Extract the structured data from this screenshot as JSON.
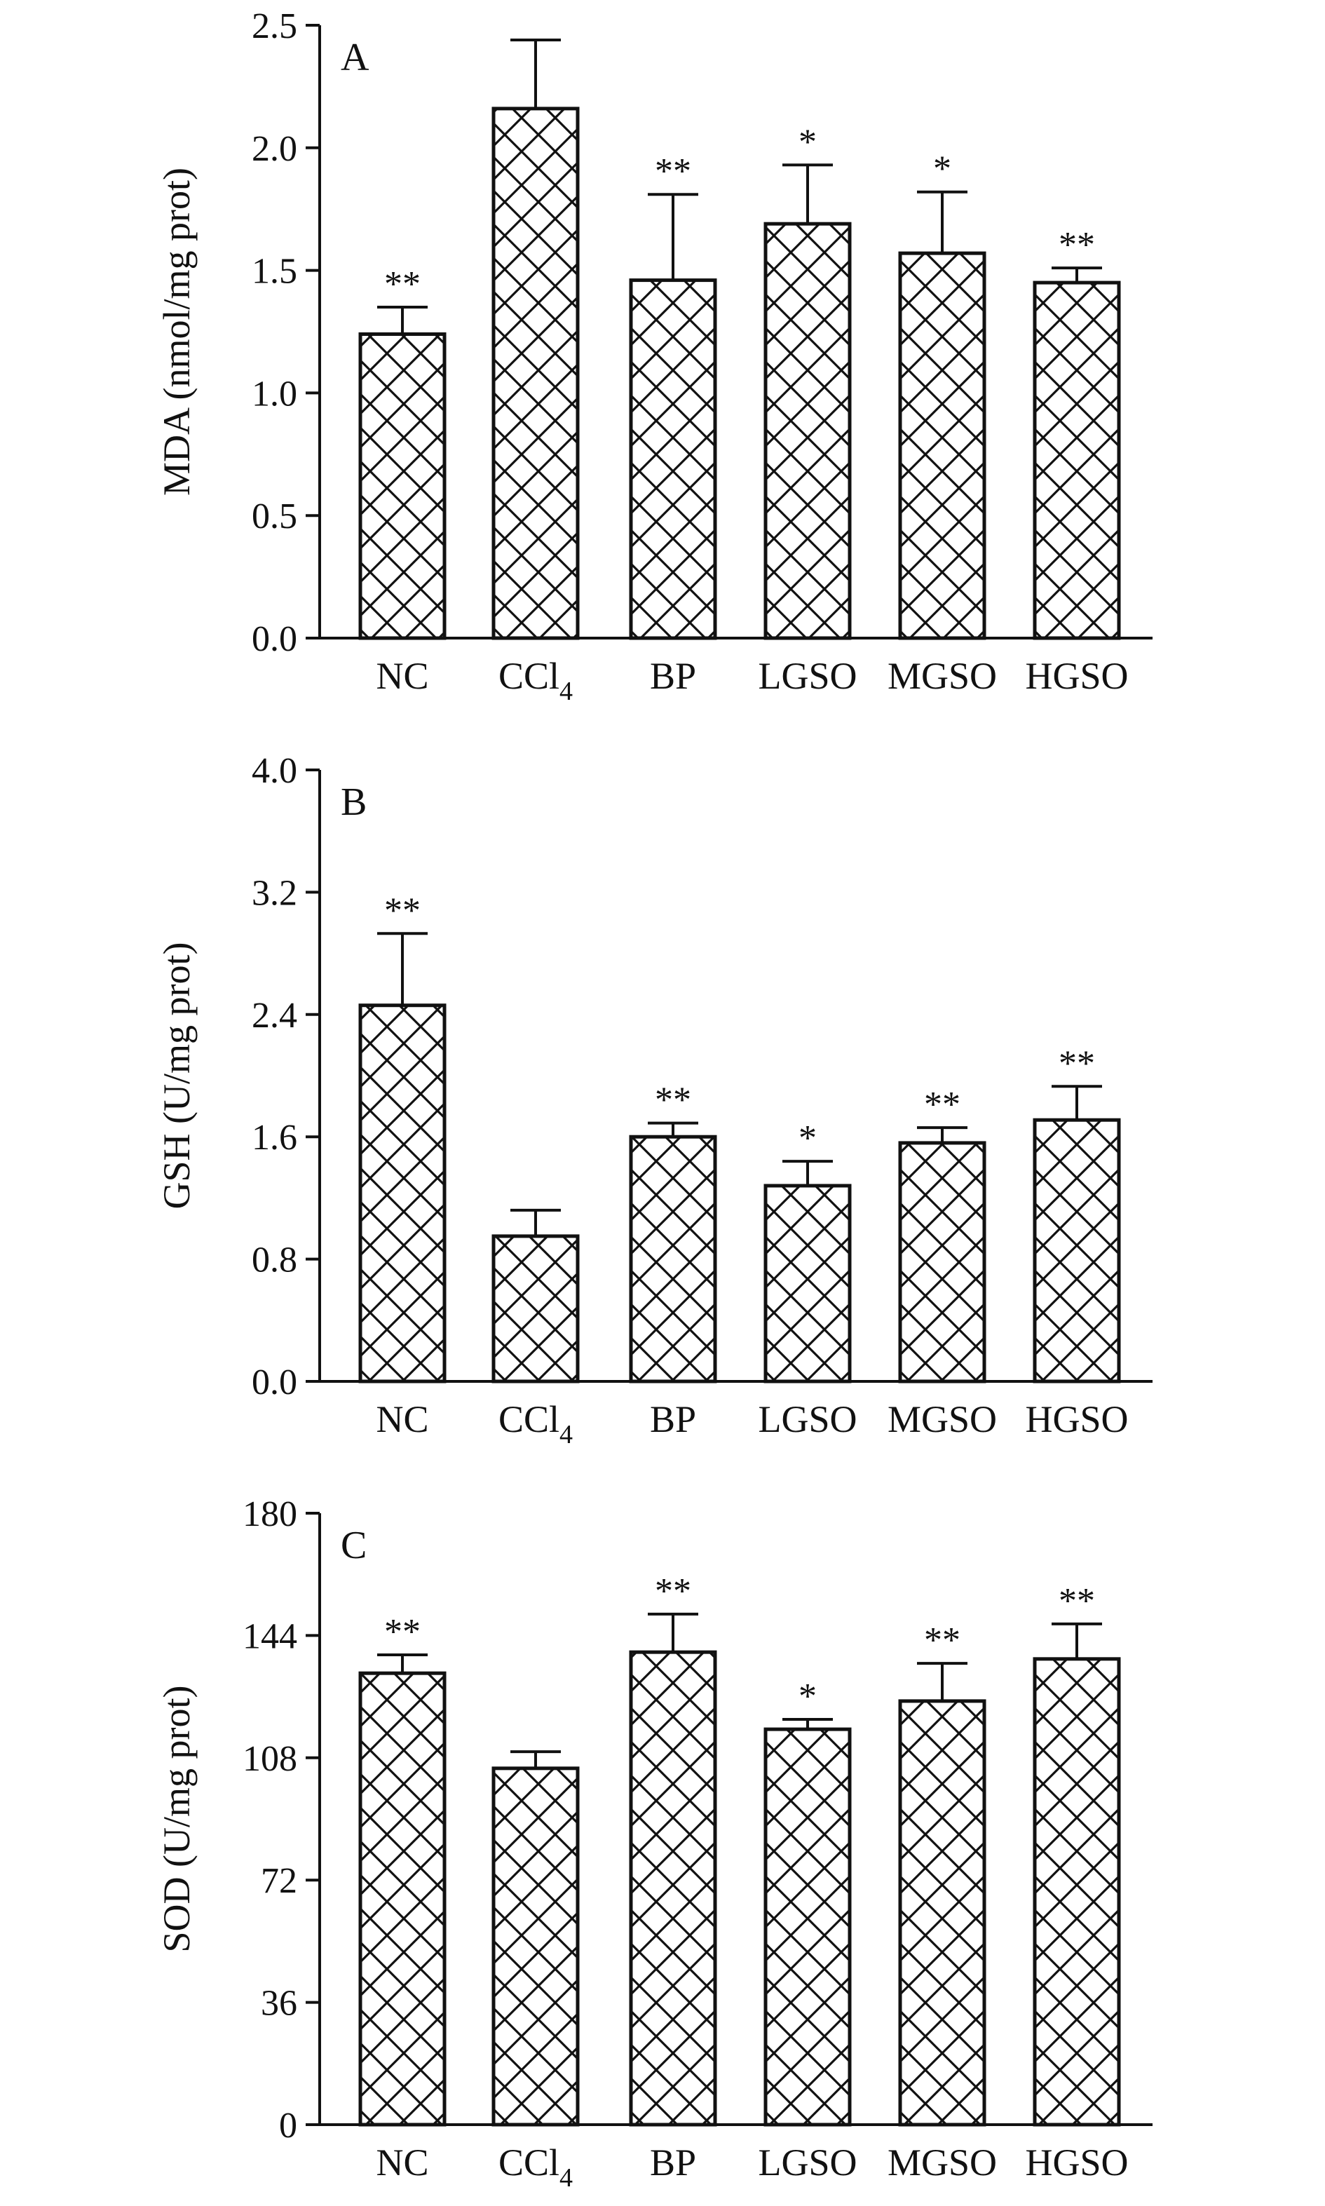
{
  "chart_data": [
    {
      "type": "bar",
      "panel_label": "A",
      "ylabel": "MDA (nmol/mg prot)",
      "ylim": [
        0,
        2.5
      ],
      "yticks": [
        "0.0",
        "0.5",
        "1.0",
        "1.5",
        "2.0",
        "2.5"
      ],
      "categories": [
        "NC",
        "CCl4",
        "BP",
        "LGSO",
        "MGSO",
        "HGSO"
      ],
      "values": [
        1.24,
        2.16,
        1.46,
        1.69,
        1.57,
        1.45
      ],
      "error_upper": [
        1.35,
        2.44,
        1.81,
        1.93,
        1.82,
        1.51
      ],
      "significance": [
        "**",
        "",
        "**",
        "*",
        "*",
        "**"
      ]
    },
    {
      "type": "bar",
      "panel_label": "B",
      "ylabel": "GSH (U/mg prot)",
      "ylim": [
        0,
        4.0
      ],
      "yticks": [
        "0.0",
        "0.8",
        "1.6",
        "2.4",
        "3.2",
        "4.0"
      ],
      "categories": [
        "NC",
        "CCl4",
        "BP",
        "LGSO",
        "MGSO",
        "HGSO"
      ],
      "values": [
        2.46,
        0.95,
        1.6,
        1.28,
        1.56,
        1.71
      ],
      "error_upper": [
        2.93,
        1.12,
        1.69,
        1.44,
        1.66,
        1.93
      ],
      "significance": [
        "**",
        "",
        "**",
        "*",
        "**",
        "**"
      ]
    },
    {
      "type": "bar",
      "panel_label": "C",
      "ylabel": "SOD (U/mg prot)",
      "ylim": [
        0,
        180
      ],
      "yticks": [
        "0",
        "36",
        "72",
        "108",
        "144",
        "180"
      ],
      "categories": [
        "NC",
        "CCl4",
        "BP",
        "LGSO",
        "MGSO",
        "HGSO"
      ],
      "values": [
        132.9,
        104.9,
        139.1,
        116.4,
        124.7,
        137.1
      ],
      "error_upper": [
        138.3,
        109.8,
        150.3,
        119.3,
        135.8,
        147.4
      ],
      "significance": [
        "**",
        "",
        "**",
        "*",
        "**",
        "**"
      ]
    }
  ]
}
